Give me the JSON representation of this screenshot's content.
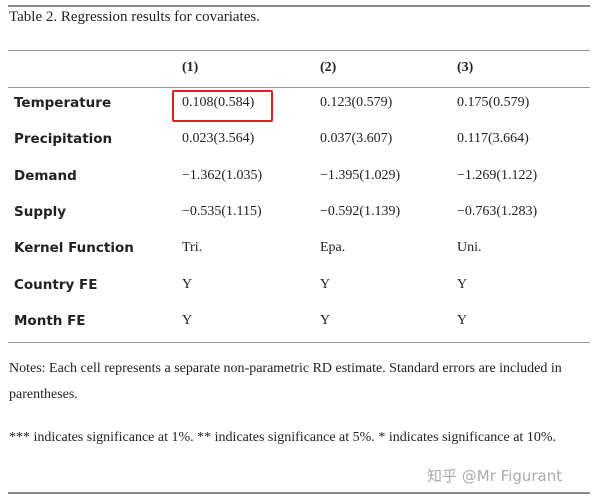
{
  "title": "Table 2. Regression results for covariates.",
  "columns": [
    "(1)",
    "(2)",
    "(3)"
  ],
  "rows": [
    {
      "label": "Temperature",
      "values": [
        "0.108(0.584)",
        "0.123(0.579)",
        "0.175(0.579)"
      ]
    },
    {
      "label": "Precipitation",
      "values": [
        "0.023(3.564)",
        "0.037(3.607)",
        "0.117(3.664)"
      ]
    },
    {
      "label": "Demand",
      "values": [
        "−1.362(1.035)",
        "−1.395(1.029)",
        "−1.269(1.122)"
      ]
    },
    {
      "label": "Supply",
      "values": [
        "−0.535(1.115)",
        "−0.592(1.139)",
        "−0.763(1.283)"
      ]
    },
    {
      "label": "Kernel Function",
      "values": [
        "Tri.",
        "Epa.",
        "Uni."
      ]
    },
    {
      "label": "Country FE",
      "values": [
        "Y",
        "Y",
        "Y"
      ]
    },
    {
      "label": "Month FE",
      "values": [
        "Y",
        "Y",
        "Y"
      ]
    }
  ],
  "highlight_color": "#e02020",
  "notes": [
    "Notes: Each cell represents a separate non-parametric RD estimate. Standard errors are included in parentheses.",
    "*** indicates significance at 1%. ** indicates significance at 5%. * indicates significance at 10%."
  ],
  "watermark": "知乎 @Mr Figurant"
}
